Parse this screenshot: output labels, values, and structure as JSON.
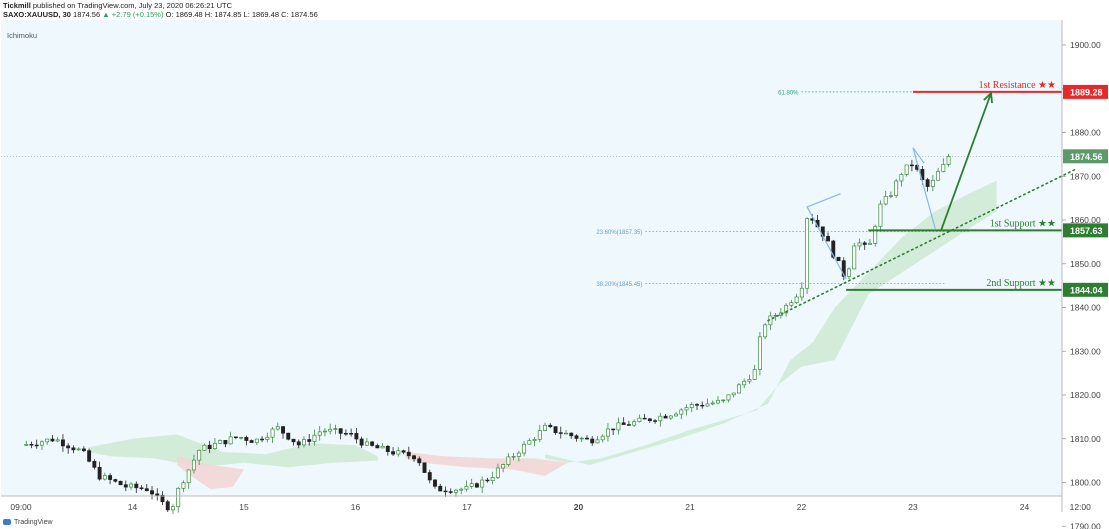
{
  "header": {
    "line1_author": "Tickmill",
    "line1_rest": "published on TradingView.com, July 23, 2020 06:26:21 UTC",
    "symbol": "SAXO:XAUUSD, 30",
    "last": "1874.56",
    "change": "▲ +2.79 (+0.15%)",
    "ohlc": "O: 1869.48 H: 1874.85 L: 1869.48 C: 1874.56"
  },
  "footer": {
    "brand": "TradingView"
  },
  "colors": {
    "background": "#eef8fd",
    "resistance": "#e62828",
    "support": "#2e7d32",
    "candle_up": "#3d8b3d",
    "candle_down": "#222222",
    "cloud_green": "#cfead5",
    "cloud_red": "#f3d6d6",
    "fib_line": "#6a9ecb",
    "fib_618": "#29a380"
  },
  "chart_data": {
    "type": "candlestick",
    "title": "SAXO:XAUUSD, 30",
    "indicator_label": "Ichimoku",
    "ylim": [
      1786,
      1908
    ],
    "y_ticks": [
      "1790.00",
      "1800.00",
      "1810.00",
      "1820.00",
      "1830.00",
      "1840.00",
      "1850.00",
      "1860.00",
      "1870.00",
      "1880.00",
      "1890.00",
      "1900.00"
    ],
    "x_ticks": [
      {
        "label": "09:00",
        "pos": 0
      },
      {
        "label": "14",
        "pos": 1
      },
      {
        "label": "15",
        "pos": 2
      },
      {
        "label": "16",
        "pos": 3
      },
      {
        "label": "17",
        "pos": 4
      },
      {
        "label": "20",
        "pos": 5
      },
      {
        "label": "21",
        "pos": 6
      },
      {
        "label": "22",
        "pos": 7
      },
      {
        "label": "23",
        "pos": 8
      },
      {
        "label": "24",
        "pos": 9
      },
      {
        "label": "12:00",
        "pos": 9.5
      }
    ],
    "x_tick_bold": [
      "20"
    ],
    "path_points": [
      [
        0.0,
        1808.5
      ],
      [
        0.3,
        1810.0
      ],
      [
        0.55,
        1807.0
      ],
      [
        0.7,
        1801.5
      ],
      [
        0.95,
        1799.0
      ],
      [
        1.15,
        1798.5
      ],
      [
        1.25,
        1795.5
      ],
      [
        1.35,
        1794.0
      ],
      [
        1.42,
        1799.0
      ],
      [
        1.6,
        1807.5
      ],
      [
        1.95,
        1810.5
      ],
      [
        2.1,
        1809.5
      ],
      [
        2.3,
        1812.5
      ],
      [
        2.5,
        1808.5
      ],
      [
        2.7,
        1812.0
      ],
      [
        2.95,
        1811.0
      ],
      [
        3.1,
        1808.5
      ],
      [
        3.4,
        1806.5
      ],
      [
        3.55,
        1806.0
      ],
      [
        3.7,
        1798.5
      ],
      [
        4.0,
        1798.5
      ],
      [
        4.2,
        1801.0
      ],
      [
        4.45,
        1807.0
      ],
      [
        4.7,
        1812.5
      ],
      [
        4.9,
        1811.0
      ],
      [
        5.1,
        1809.5
      ],
      [
        5.3,
        1812.5
      ],
      [
        5.55,
        1814.0
      ],
      [
        5.8,
        1815.5
      ],
      [
        6.0,
        1817.5
      ],
      [
        6.3,
        1818.5
      ],
      [
        6.5,
        1823.5
      ],
      [
        6.58,
        1825.5
      ],
      [
        6.65,
        1836.0
      ],
      [
        6.85,
        1840.0
      ],
      [
        6.95,
        1843.0
      ],
      [
        7.0,
        1843.5
      ],
      [
        7.03,
        1860.5
      ],
      [
        7.08,
        1861.0
      ],
      [
        7.2,
        1856.5
      ],
      [
        7.3,
        1851.5
      ],
      [
        7.4,
        1846.5
      ],
      [
        7.48,
        1855.5
      ],
      [
        7.6,
        1853.0
      ],
      [
        7.7,
        1863.0
      ],
      [
        7.8,
        1866.0
      ],
      [
        7.9,
        1871.0
      ],
      [
        8.0,
        1873.0
      ],
      [
        8.08,
        1869.0
      ],
      [
        8.15,
        1867.0
      ],
      [
        8.2,
        1870.0
      ],
      [
        8.28,
        1872.5
      ],
      [
        8.32,
        1874.6
      ]
    ],
    "cloud_green": [
      [
        [
          0.6,
          1808.0
        ],
        [
          1.0,
          1810.0
        ],
        [
          1.4,
          1811.0
        ],
        [
          1.8,
          1807.0
        ],
        [
          2.2,
          1806.5
        ],
        [
          2.6,
          1809.0
        ],
        [
          3.0,
          1808.5
        ],
        [
          3.2,
          1806.0
        ],
        [
          3.2,
          1805.0
        ],
        [
          2.8,
          1804.5
        ],
        [
          2.4,
          1803.5
        ],
        [
          2.0,
          1804.5
        ],
        [
          1.6,
          1803.5
        ],
        [
          1.2,
          1805.5
        ],
        [
          0.8,
          1806.0
        ],
        [
          0.6,
          1807.0
        ]
      ],
      [
        [
          4.7,
          1806.5
        ],
        [
          5.1,
          1804.0
        ],
        [
          5.5,
          1807.0
        ],
        [
          5.9,
          1810.0
        ],
        [
          6.3,
          1813.5
        ],
        [
          6.7,
          1818.0
        ],
        [
          6.9,
          1828.0
        ],
        [
          7.1,
          1832.0
        ],
        [
          7.3,
          1840.0
        ],
        [
          7.6,
          1848.0
        ],
        [
          7.9,
          1856.0
        ],
        [
          8.2,
          1862.0
        ],
        [
          8.5,
          1866.0
        ],
        [
          8.75,
          1869.0
        ],
        [
          8.75,
          1862.0
        ],
        [
          8.5,
          1858.0
        ],
        [
          8.2,
          1853.0
        ],
        [
          7.9,
          1848.0
        ],
        [
          7.6,
          1843.0
        ],
        [
          7.5,
          1838.0
        ],
        [
          7.3,
          1828.0
        ],
        [
          7.0,
          1826.5
        ],
        [
          6.8,
          1822.5
        ],
        [
          6.6,
          1816.5
        ],
        [
          6.4,
          1815.0
        ],
        [
          6.0,
          1812.0
        ],
        [
          5.6,
          1808.5
        ],
        [
          5.2,
          1805.5
        ],
        [
          4.9,
          1804.5
        ],
        [
          4.7,
          1805.5
        ]
      ]
    ],
    "cloud_red": [
      [
        [
          1.4,
          1806.0
        ],
        [
          1.7,
          1804.0
        ],
        [
          2.0,
          1803.0
        ],
        [
          1.9,
          1799.0
        ],
        [
          1.7,
          1798.5
        ],
        [
          1.5,
          1802.0
        ],
        [
          1.4,
          1804.0
        ]
      ],
      [
        [
          3.45,
          1807.0
        ],
        [
          3.8,
          1806.0
        ],
        [
          4.2,
          1805.5
        ],
        [
          4.6,
          1805.5
        ],
        [
          4.9,
          1804.5
        ],
        [
          4.7,
          1801.5
        ],
        [
          4.4,
          1803.0
        ],
        [
          4.0,
          1803.5
        ],
        [
          3.6,
          1804.5
        ],
        [
          3.45,
          1805.5
        ]
      ]
    ],
    "levels": [
      {
        "name": "1st Resistance ★★",
        "value": 1889.28,
        "label": "1889.28",
        "color": "#e62828",
        "from": 8.0,
        "kind": "resistance"
      },
      {
        "name": "1st Support ★★",
        "value": 1857.63,
        "label": "1857.63",
        "color": "#2e7d32",
        "from": 7.6,
        "kind": "support"
      },
      {
        "name": "2nd Support ★★",
        "value": 1844.04,
        "label": "1844.04",
        "color": "#2e7d32",
        "from": 7.4,
        "kind": "support"
      }
    ],
    "fib_levels": [
      {
        "label": "61.80%",
        "value": 1889.28,
        "from": 7.0,
        "to": 8.0
      },
      {
        "label": "23.60%(1857.35)",
        "value": 1857.35,
        "from": 5.6,
        "to": 8.5
      },
      {
        "label": "38.20%(1845.45)",
        "value": 1845.45,
        "from": 5.6,
        "to": 8.3
      }
    ],
    "current_price": {
      "value": 1874.56,
      "label": "1874.56"
    },
    "trendline": {
      "from": [
        6.7,
        1837.0
      ],
      "to": [
        9.45,
        1871.5
      ]
    },
    "projection_arrow": {
      "from": [
        8.25,
        1857.5
      ],
      "to": [
        8.7,
        1889.0
      ]
    },
    "zigzags": [
      [
        [
          7.4,
          1846.5
        ],
        [
          7.05,
          1863.0
        ],
        [
          7.35,
          1866.0
        ]
      ],
      [
        [
          8.2,
          1858.0
        ],
        [
          8.0,
          1876.5
        ],
        [
          8.1,
          1873.0
        ]
      ]
    ]
  }
}
